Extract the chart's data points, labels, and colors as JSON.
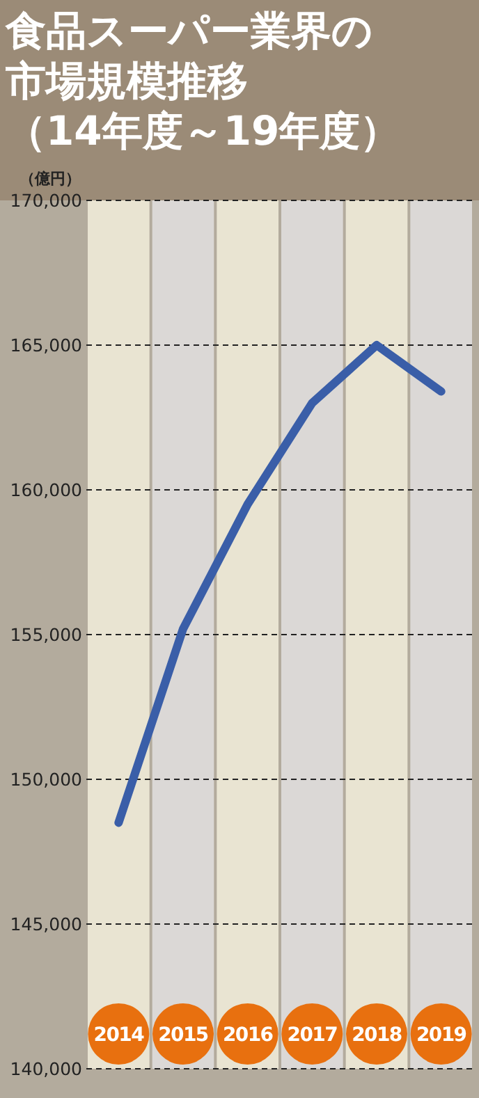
{
  "chart_data": {
    "type": "line",
    "title": "食品スーパー業界の市場規模推移",
    "subtitle": "（14年度～19年度）",
    "ylabel": "（億円）",
    "categories": [
      "2014",
      "2015",
      "2016",
      "2017",
      "2018",
      "2019"
    ],
    "series": [
      {
        "color": "#3a5ea8",
        "values": [
          148500,
          155200,
          159500,
          163000,
          165000,
          163400
        ]
      }
    ],
    "ylim": [
      140000,
      170000
    ],
    "yticks": [
      {
        "value": 140000,
        "label": "140,000"
      },
      {
        "value": 145000,
        "label": "145,000"
      },
      {
        "value": 150000,
        "label": "150,000"
      },
      {
        "value": 155000,
        "label": "155,000"
      },
      {
        "value": 160000,
        "label": "160,000"
      },
      {
        "value": 165000,
        "label": "165,000"
      },
      {
        "value": 170000,
        "label": "170,000"
      }
    ],
    "grid": "y",
    "marker": "none",
    "line_style": "solid"
  }
}
